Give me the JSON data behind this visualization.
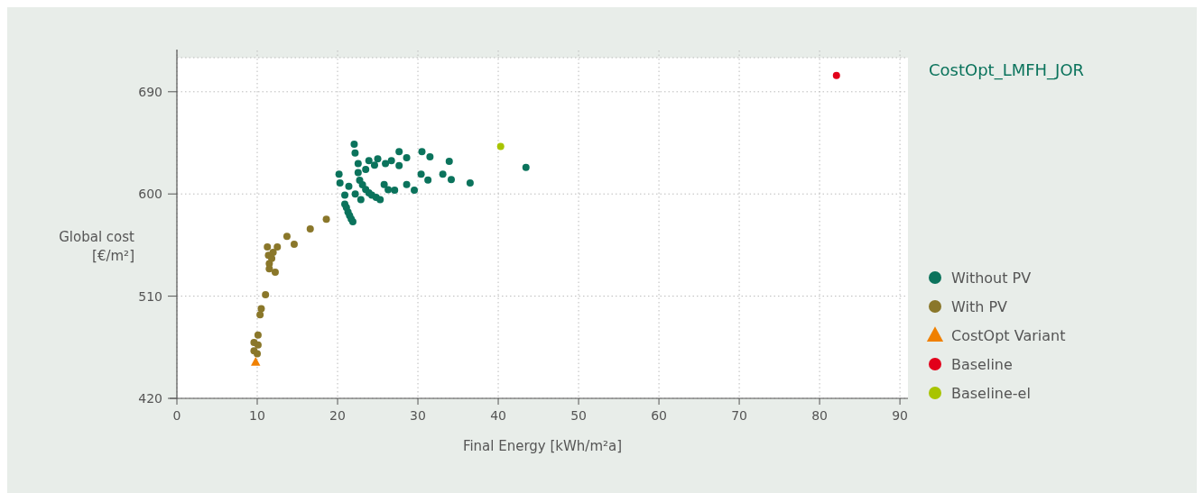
{
  "chart_data": {
    "type": "scatter",
    "title": "CostOpt_LMFH_JOR",
    "xlabel": "Final Energy [kWh/m²a]",
    "ylabel": "Global cost\n[€/m²]",
    "xlim": [
      0,
      91
    ],
    "ylim": [
      420,
      720
    ],
    "xticks": [
      0,
      10,
      20,
      30,
      40,
      50,
      60,
      70,
      80,
      90
    ],
    "yticks": [
      420,
      510,
      600,
      690,
      {
        "value": 720,
        "label": null
      }
    ],
    "grid": true,
    "legend": "right",
    "marker": "circle",
    "series": [
      {
        "name": "Without PV",
        "color": "#0b735c",
        "x": [
          22.07,
          22.18,
          20.18,
          20.3,
          21.4,
          20.9,
          20.9,
          21.1,
          21.3,
          21.5,
          21.7,
          21.9,
          22.56,
          22.56,
          22.75,
          23.1,
          23.5,
          23.9,
          24.26,
          24.8,
          25.3,
          22.9,
          22.2,
          23.5,
          23.9,
          25.0,
          24.6,
          25.96,
          26.7,
          27.66,
          28.6,
          27.66,
          25.8,
          26.3,
          27.1,
          28.6,
          29.55,
          30.5,
          31.5,
          30.4,
          31.25,
          33.9,
          33.1,
          34.15,
          36.5,
          43.45
        ],
        "values": [
          643.9,
          636,
          617.5,
          609.6,
          606.8,
          599,
          591,
          588,
          584,
          581,
          578,
          575.6,
          626.7,
          618.8,
          612,
          608,
          604,
          601,
          599,
          597,
          595,
          595,
          600,
          621.5,
          629.4,
          631,
          625.4,
          626.7,
          629.4,
          637.3,
          632,
          625,
          608.2,
          603.7,
          603.4,
          608.2,
          603.4,
          637.3,
          632.6,
          617.5,
          612.2,
          628.8,
          617.5,
          612.7,
          609.6,
          623.3
        ]
      },
      {
        "name": "With PV",
        "color": "#8a772a",
        "x": [
          18.6,
          16.6,
          13.7,
          14.6,
          11.26,
          12.5,
          11.98,
          11.4,
          11.8,
          11.5,
          11.5,
          12.24,
          11.03,
          10.5,
          10.35,
          10.1,
          9.6,
          10.1,
          9.6,
          10.0
        ],
        "values": [
          577.8,
          569.3,
          562.7,
          555.8,
          553.4,
          553.4,
          548.6,
          546,
          543.3,
          538.6,
          534.1,
          531.2,
          511.3,
          498.9,
          493.6,
          475.8,
          469.2,
          467.1,
          461.8,
          459.2
        ]
      },
      {
        "name": "CostOpt Variant",
        "color": "#f08000",
        "marker": "triangle",
        "x": [
          9.8
        ],
        "values": [
          452
        ]
      },
      {
        "name": "Baseline",
        "color": "#e2001a",
        "x": [
          82.1
        ],
        "values": [
          704.4
        ]
      },
      {
        "name": "Baseline-el",
        "color": "#a8c400",
        "x": [
          40.3
        ],
        "values": [
          641.8
        ]
      }
    ]
  }
}
